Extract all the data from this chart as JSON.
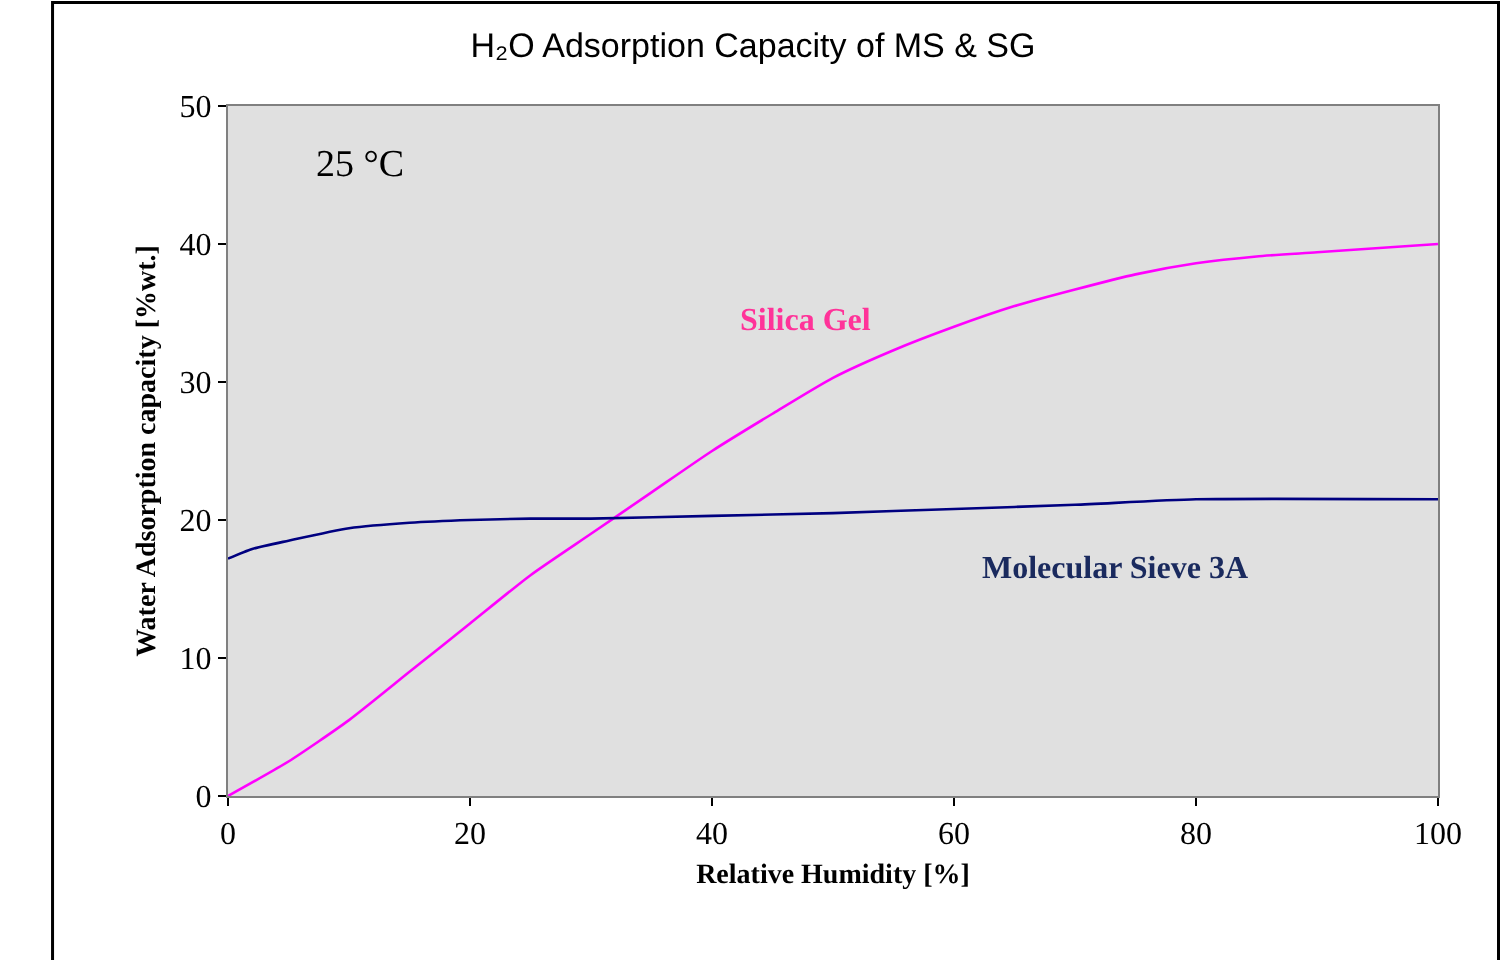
{
  "chart_data": {
    "type": "line",
    "title": "H₂O Adsorption Capacity of MS & SG",
    "xlabel": "Relative Humidity [%]",
    "ylabel": "Water Adsorption capacity [%wt.]",
    "annotations": [
      "25 °C"
    ],
    "series": [
      {
        "name": "Silica Gel",
        "color": "#ff00ff",
        "x": [
          0,
          5,
          10,
          15,
          20,
          25,
          30,
          35,
          40,
          45,
          50,
          55,
          60,
          65,
          70,
          75,
          80,
          85,
          90,
          100
        ],
        "values": [
          0,
          2.5,
          5.5,
          9,
          12.5,
          16,
          19,
          22,
          25,
          27.7,
          30.3,
          32.3,
          34,
          35.5,
          36.7,
          37.8,
          38.6,
          39.1,
          39.4,
          40
        ]
      },
      {
        "name": "Molecular Sieve 3A",
        "color": "#000080",
        "x": [
          0,
          2,
          5,
          10,
          15,
          20,
          25,
          30,
          40,
          50,
          60,
          70,
          80,
          100
        ],
        "values": [
          17.2,
          17.9,
          18.5,
          19.4,
          19.8,
          20,
          20.1,
          20.1,
          20.3,
          20.5,
          20.8,
          21.1,
          21.5,
          21.5
        ]
      }
    ],
    "xlim": [
      0,
      100
    ],
    "xticks": [
      0,
      20,
      40,
      60,
      80,
      100
    ],
    "ylim": [
      0,
      50
    ],
    "yticks": [
      0,
      10,
      20,
      30,
      40,
      50
    ],
    "grid": false,
    "legend": false,
    "marker": "none",
    "line_style": "solid"
  }
}
